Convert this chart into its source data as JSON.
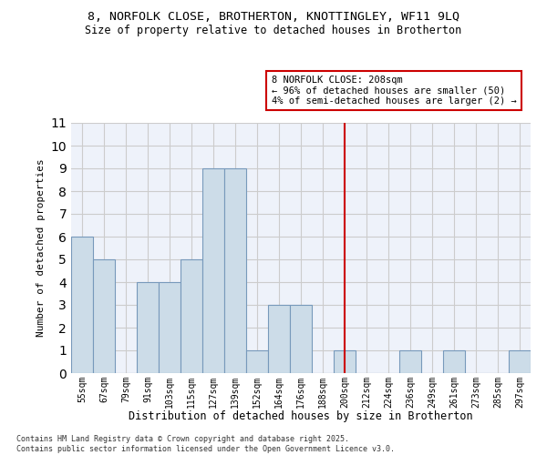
{
  "title_line1": "8, NORFOLK CLOSE, BROTHERTON, KNOTTINGLEY, WF11 9LQ",
  "title_line2": "Size of property relative to detached houses in Brotherton",
  "xlabel": "Distribution of detached houses by size in Brotherton",
  "ylabel": "Number of detached properties",
  "categories": [
    "55sqm",
    "67sqm",
    "79sqm",
    "91sqm",
    "103sqm",
    "115sqm",
    "127sqm",
    "139sqm",
    "152sqm",
    "164sqm",
    "176sqm",
    "188sqm",
    "200sqm",
    "212sqm",
    "224sqm",
    "236sqm",
    "249sqm",
    "261sqm",
    "273sqm",
    "285sqm",
    "297sqm"
  ],
  "values": [
    6,
    5,
    0,
    4,
    4,
    5,
    9,
    9,
    1,
    3,
    3,
    0,
    1,
    0,
    0,
    1,
    0,
    1,
    0,
    0,
    1
  ],
  "bar_color": "#ccdce8",
  "bar_edge_color": "#7799bb",
  "grid_color": "#cccccc",
  "background_color": "#eef2fa",
  "vline_x_index": 12,
  "vline_color": "#cc0000",
  "annotation_text": "8 NORFOLK CLOSE: 208sqm\n← 96% of detached houses are smaller (50)\n4% of semi-detached houses are larger (2) →",
  "annotation_box_color": "#cc0000",
  "footer_line1": "Contains HM Land Registry data © Crown copyright and database right 2025.",
  "footer_line2": "Contains public sector information licensed under the Open Government Licence v3.0.",
  "ylim": [
    0,
    11
  ],
  "yticks": [
    0,
    1,
    2,
    3,
    4,
    5,
    6,
    7,
    8,
    9,
    10,
    11
  ]
}
